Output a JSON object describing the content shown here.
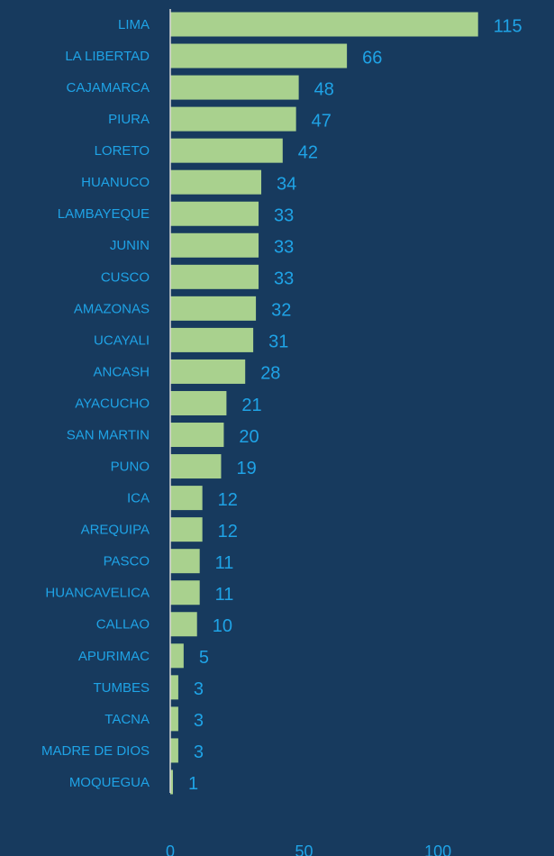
{
  "chart_data": {
    "type": "barh",
    "categories": [
      "LIMA",
      "LA LIBERTAD",
      "CAJAMARCA",
      "PIURA",
      "LORETO",
      "HUANUCO",
      "LAMBAYEQUE",
      "JUNIN",
      "CUSCO",
      "AMAZONAS",
      "UCAYALI",
      "ANCASH",
      "AYACUCHO",
      "SAN MARTIN",
      "PUNO",
      "ICA",
      "AREQUIPA",
      "PASCO",
      "HUANCAVELICA",
      "CALLAO",
      "APURIMAC",
      "TUMBES",
      "TACNA",
      "MADRE DE DIOS",
      "MOQUEGUA"
    ],
    "values": [
      115,
      66,
      48,
      47,
      42,
      34,
      33,
      33,
      33,
      32,
      31,
      28,
      21,
      20,
      19,
      12,
      12,
      11,
      11,
      10,
      5,
      3,
      3,
      3,
      1
    ],
    "color": "#a9d18e",
    "xlim": [
      0,
      140
    ],
    "xticks": [
      0,
      50,
      100
    ]
  }
}
